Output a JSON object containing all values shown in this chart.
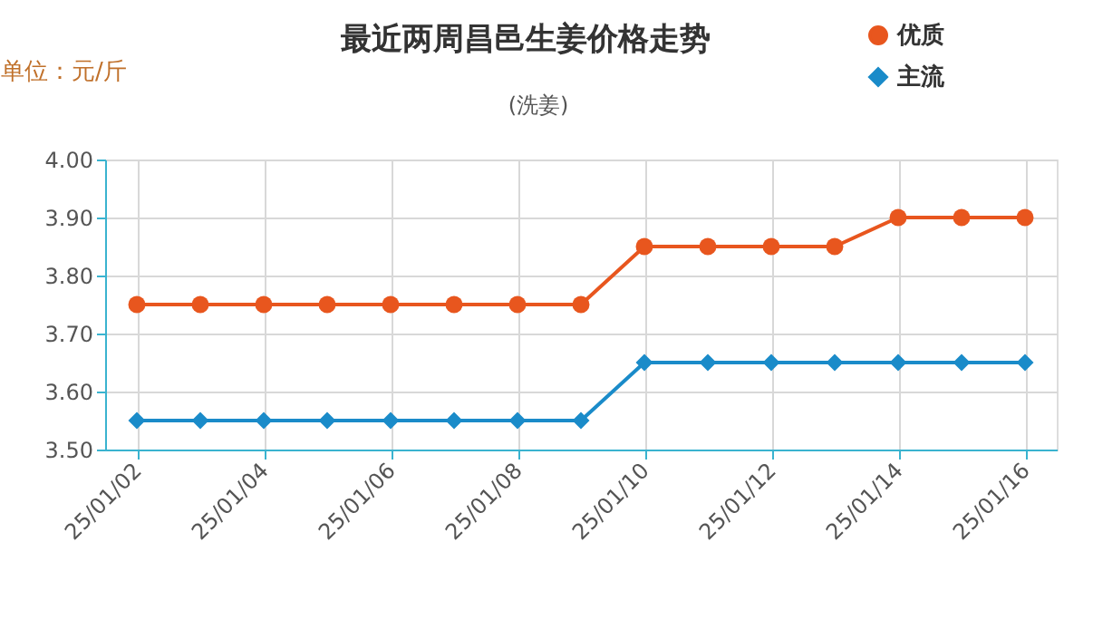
{
  "chart_data": {
    "type": "line",
    "title": "最近两周昌邑生姜价格走势",
    "subtitle": "(洗姜)",
    "ylabel": "单位：元/斤",
    "categories": [
      "25/01/02",
      null,
      "25/01/04",
      null,
      "25/01/06",
      null,
      "25/01/08",
      null,
      "25/01/10",
      null,
      "25/01/12",
      null,
      "25/01/14",
      null,
      "25/01/16"
    ],
    "series": [
      {
        "name": "优质",
        "color": "#e8561e",
        "marker": "circle",
        "values": [
          3.75,
          3.75,
          3.75,
          3.75,
          3.75,
          3.75,
          3.75,
          3.75,
          3.85,
          3.85,
          3.85,
          3.85,
          3.9,
          3.9,
          3.9
        ]
      },
      {
        "name": "主流",
        "color": "#1a8bc9",
        "marker": "diamond",
        "values": [
          3.55,
          3.55,
          3.55,
          3.55,
          3.55,
          3.55,
          3.55,
          3.55,
          3.65,
          3.65,
          3.65,
          3.65,
          3.65,
          3.65,
          3.65
        ]
      }
    ],
    "ylim": [
      3.5,
      4.0
    ],
    "yticks": [
      {
        "value": 3.5,
        "label": "3.50"
      },
      {
        "value": 3.6,
        "label": "3.60"
      },
      {
        "value": 3.7,
        "label": "3.70"
      },
      {
        "value": 3.8,
        "label": "3.80"
      },
      {
        "value": 3.9,
        "label": "3.90"
      },
      {
        "value": 4.0,
        "label": "4.00"
      }
    ],
    "grid": true,
    "legend": "top right"
  }
}
